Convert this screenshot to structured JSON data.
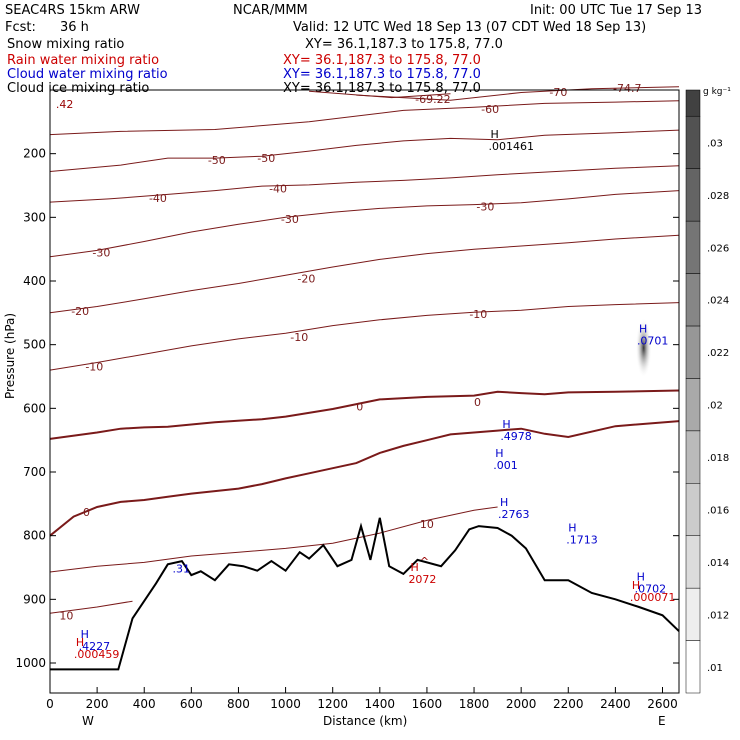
{
  "header": {
    "model": "SEAC4RS 15km ARW",
    "center": "NCAR/MMM",
    "init": "Init: 00 UTC Tue 17 Sep 13",
    "fcst_label": "Fcst:",
    "fcst_value": "36 h",
    "valid": "Valid: 12 UTC Wed 18 Sep 13 (07 CDT Wed 18 Sep 13)"
  },
  "fields": [
    {
      "name": "Snow mixing ratio",
      "xy": "XY=  36.1,187.3 to 175.8, 77.0",
      "color": "#000000"
    },
    {
      "name": "Rain water mixing ratio",
      "xy": "XY=  36.1,187.3 to 175.8, 77.0",
      "color": "#cc0000"
    },
    {
      "name": "Cloud water mixing ratio",
      "xy": "XY=  36.1,187.3 to 175.8, 77.0",
      "color": "#0000cc"
    },
    {
      "name": "Cloud ice mixing ratio",
      "xy": "XY=  36.1,187.3 to 175.8, 77.0",
      "color": "#000000"
    }
  ],
  "colorbar": {
    "unit": "g kg⁻¹",
    "ticks": [
      ".01",
      ".012",
      ".014",
      ".016",
      ".018",
      ".02",
      ".022",
      ".024",
      ".026",
      ".028",
      ".03"
    ]
  },
  "chart_data": {
    "type": "cross-section",
    "xlabel": "Distance (km)",
    "ylabel": "Pressure (hPa)",
    "xlim": [
      0,
      2670
    ],
    "ylim": [
      1035,
      100
    ],
    "x_ticks": [
      0,
      200,
      400,
      600,
      800,
      1000,
      1200,
      1400,
      1600,
      1800,
      2000,
      2200,
      2400,
      2600
    ],
    "y_ticks": [
      200,
      300,
      400,
      500,
      600,
      700,
      800,
      900,
      1000
    ],
    "end_labels": {
      "left": "W",
      "right": "E"
    },
    "temperature_contours": [
      {
        "label": "-70",
        "points": [
          [
            1300,
            108
          ],
          [
            1700,
            116
          ],
          [
            2000,
            104
          ],
          [
            2300,
            98
          ],
          [
            2670,
            95
          ]
        ],
        "labels_at": [
          [
            2120,
            103
          ],
          [
            2390,
            97
          ]
        ],
        "label_texts": [
          "-70",
          "-74.7"
        ]
      },
      {
        "label": "-69.22",
        "points": [
          [
            1100,
            102
          ],
          [
            1450,
            112
          ],
          [
            1700,
            106
          ]
        ],
        "labels_at": [
          [
            1550,
            114
          ]
        ],
        "label_texts": [
          "-69.22"
        ]
      },
      {
        "label": "-60",
        "points": [
          [
            0,
            170
          ],
          [
            300,
            165
          ],
          [
            700,
            162
          ],
          [
            1100,
            150
          ],
          [
            1500,
            132
          ],
          [
            1800,
            127
          ],
          [
            2100,
            121
          ],
          [
            2400,
            119
          ],
          [
            2670,
            117
          ]
        ],
        "labels_at": [
          [
            1830,
            130
          ]
        ],
        "label_texts": [
          "-60"
        ]
      },
      {
        "label": "-50",
        "points": [
          [
            0,
            228
          ],
          [
            300,
            218
          ],
          [
            500,
            207
          ],
          [
            700,
            207
          ],
          [
            900,
            204
          ],
          [
            1100,
            196
          ],
          [
            1300,
            187
          ],
          [
            1500,
            180
          ],
          [
            1700,
            176
          ],
          [
            1900,
            178
          ],
          [
            2100,
            171
          ],
          [
            2400,
            167
          ],
          [
            2670,
            163
          ]
        ],
        "labels_at": [
          [
            670,
            210
          ],
          [
            880,
            207
          ]
        ],
        "label_texts": [
          "-50",
          "-50"
        ]
      },
      {
        "label": "-40",
        "points": [
          [
            0,
            276
          ],
          [
            250,
            271
          ],
          [
            500,
            264
          ],
          [
            700,
            258
          ],
          [
            900,
            251
          ],
          [
            1100,
            249
          ],
          [
            1300,
            245
          ],
          [
            1500,
            242
          ],
          [
            1700,
            238
          ],
          [
            1900,
            233
          ],
          [
            2100,
            229
          ],
          [
            2400,
            223
          ],
          [
            2670,
            219
          ]
        ],
        "labels_at": [
          [
            420,
            270
          ],
          [
            930,
            255
          ]
        ],
        "label_texts": [
          "-40",
          "-40"
        ]
      },
      {
        "label": "-30",
        "points": [
          [
            0,
            362
          ],
          [
            200,
            352
          ],
          [
            400,
            338
          ],
          [
            600,
            323
          ],
          [
            800,
            311
          ],
          [
            1000,
            300
          ],
          [
            1200,
            292
          ],
          [
            1400,
            286
          ],
          [
            1600,
            282
          ],
          [
            1800,
            280
          ],
          [
            2000,
            277
          ],
          [
            2200,
            271
          ],
          [
            2400,
            264
          ],
          [
            2670,
            258
          ]
        ],
        "labels_at": [
          [
            180,
            355
          ],
          [
            980,
            303
          ],
          [
            1810,
            283
          ]
        ],
        "label_texts": [
          "-30",
          "-30",
          "-30"
        ]
      },
      {
        "label": "-20",
        "points": [
          [
            0,
            450
          ],
          [
            200,
            440
          ],
          [
            400,
            428
          ],
          [
            600,
            415
          ],
          [
            800,
            404
          ],
          [
            1000,
            391
          ],
          [
            1200,
            378
          ],
          [
            1400,
            366
          ],
          [
            1600,
            357
          ],
          [
            1800,
            350
          ],
          [
            2000,
            345
          ],
          [
            2200,
            340
          ],
          [
            2400,
            334
          ],
          [
            2670,
            328
          ]
        ],
        "labels_at": [
          [
            90,
            447
          ],
          [
            1050,
            396
          ]
        ],
        "label_texts": [
          "-20",
          "-20"
        ]
      },
      {
        "label": "-10",
        "points": [
          [
            0,
            540
          ],
          [
            200,
            528
          ],
          [
            400,
            515
          ],
          [
            600,
            502
          ],
          [
            800,
            491
          ],
          [
            1000,
            482
          ],
          [
            1200,
            470
          ],
          [
            1400,
            461
          ],
          [
            1600,
            454
          ],
          [
            1800,
            449
          ],
          [
            2000,
            446
          ],
          [
            2200,
            440
          ],
          [
            2400,
            437
          ],
          [
            2670,
            434
          ]
        ],
        "labels_at": [
          [
            150,
            534
          ],
          [
            1020,
            488
          ],
          [
            1780,
            452
          ]
        ],
        "label_texts": [
          "-10",
          "-10",
          "-10"
        ]
      },
      {
        "label": "0",
        "points": [
          [
            0,
            648
          ],
          [
            200,
            638
          ],
          [
            300,
            632
          ],
          [
            400,
            630
          ],
          [
            500,
            629
          ],
          [
            700,
            622
          ],
          [
            900,
            617
          ],
          [
            1000,
            613
          ],
          [
            1200,
            601
          ],
          [
            1400,
            586
          ],
          [
            1600,
            582
          ],
          [
            1800,
            580
          ],
          [
            1900,
            574
          ],
          [
            2000,
            576
          ],
          [
            2100,
            578
          ],
          [
            2200,
            575
          ],
          [
            2400,
            574
          ],
          [
            2670,
            572
          ]
        ],
        "labels_at": [
          [
            1300,
            597
          ],
          [
            1800,
            590
          ]
        ],
        "label_texts": [
          "0",
          "0"
        ]
      },
      {
        "label": "0",
        "points": [
          [
            0,
            800
          ],
          [
            100,
            770
          ],
          [
            200,
            755
          ],
          [
            300,
            747
          ],
          [
            400,
            744
          ],
          [
            500,
            739
          ],
          [
            600,
            734
          ],
          [
            700,
            730
          ],
          [
            800,
            726
          ],
          [
            900,
            719
          ],
          [
            1000,
            710
          ],
          [
            1100,
            702
          ],
          [
            1200,
            694
          ],
          [
            1300,
            686
          ],
          [
            1400,
            670
          ],
          [
            1500,
            659
          ],
          [
            1600,
            650
          ],
          [
            1700,
            641
          ],
          [
            1800,
            638
          ],
          [
            1900,
            635
          ],
          [
            2000,
            632
          ],
          [
            2100,
            640
          ],
          [
            2200,
            645
          ],
          [
            2400,
            628
          ],
          [
            2670,
            620
          ]
        ],
        "labels_at": [
          [
            140,
            763
          ]
        ],
        "label_texts": [
          "0"
        ]
      },
      {
        "label": "10",
        "points": [
          [
            0,
            857
          ],
          [
            200,
            848
          ],
          [
            400,
            842
          ],
          [
            600,
            832
          ],
          [
            800,
            826
          ],
          [
            1000,
            820
          ],
          [
            1200,
            812
          ],
          [
            1400,
            796
          ],
          [
            1600,
            776
          ],
          [
            1800,
            760
          ],
          [
            1900,
            755
          ]
        ],
        "labels_at": [
          [
            1570,
            782
          ]
        ],
        "label_texts": [
          "10"
        ]
      },
      {
        "label": "10",
        "points": [
          [
            0,
            922
          ],
          [
            200,
            912
          ],
          [
            350,
            903
          ]
        ],
        "labels_at": [
          [
            40,
            925
          ]
        ],
        "label_texts": [
          "10"
        ]
      }
    ],
    "terrain": [
      [
        0,
        1010
      ],
      [
        100,
        1010
      ],
      [
        200,
        1010
      ],
      [
        290,
        1010
      ],
      [
        350,
        930
      ],
      [
        450,
        875
      ],
      [
        500,
        845
      ],
      [
        560,
        840
      ],
      [
        600,
        862
      ],
      [
        640,
        856
      ],
      [
        700,
        870
      ],
      [
        760,
        845
      ],
      [
        820,
        848
      ],
      [
        880,
        855
      ],
      [
        940,
        840
      ],
      [
        1000,
        855
      ],
      [
        1060,
        826
      ],
      [
        1100,
        836
      ],
      [
        1160,
        815
      ],
      [
        1220,
        848
      ],
      [
        1280,
        838
      ],
      [
        1320,
        785
      ],
      [
        1360,
        838
      ],
      [
        1400,
        772
      ],
      [
        1440,
        848
      ],
      [
        1500,
        860
      ],
      [
        1560,
        838
      ],
      [
        1600,
        842
      ],
      [
        1660,
        848
      ],
      [
        1720,
        823
      ],
      [
        1780,
        790
      ],
      [
        1820,
        785
      ],
      [
        1900,
        788
      ],
      [
        1960,
        800
      ],
      [
        2020,
        820
      ],
      [
        2100,
        870
      ],
      [
        2200,
        870
      ],
      [
        2300,
        890
      ],
      [
        2400,
        900
      ],
      [
        2500,
        912
      ],
      [
        2600,
        925
      ],
      [
        2670,
        950
      ]
    ],
    "maxima": [
      {
        "label": "H",
        "value": ".001461",
        "x": 1870,
        "p": 185,
        "color": "#000000"
      },
      {
        "label": "H",
        "value": ".0701",
        "x": 2500,
        "p": 490,
        "color": "#0000cc"
      },
      {
        "label": "H",
        "value": ".4978",
        "x": 1920,
        "p": 640,
        "color": "#0000cc"
      },
      {
        "label": "H",
        "value": ".001",
        "x": 1890,
        "p": 686,
        "color": "#0000cc"
      },
      {
        "label": "H",
        "value": ".2763",
        "x": 1910,
        "p": 763,
        "color": "#0000cc"
      },
      {
        "label": "H",
        "value": ".1713",
        "x": 2200,
        "p": 803,
        "color": "#0000cc"
      },
      {
        "label": "H",
        "value": "2072",
        "x": 1530,
        "p": 865,
        "color": "#cc0000"
      },
      {
        "label": "H",
        "value": ".0702",
        "x": 2490,
        "p": 880,
        "color": "#0000cc"
      },
      {
        "label": "H",
        "value": ".000071",
        "x": 2470,
        "p": 893,
        "color": "#cc0000"
      },
      {
        "label": "H",
        "value": ".4227",
        "x": 130,
        "p": 970,
        "color": "#0000cc"
      },
      {
        "label": "H",
        "value": ".000459",
        "x": 110,
        "p": 983,
        "color": "#cc0000"
      }
    ],
    "extra_labels": [
      {
        "text": ".42",
        "x": 25,
        "p": 128,
        "color": "#990000"
      },
      {
        "text": ".31",
        "x": 520,
        "p": 858,
        "color": "#0000cc"
      },
      {
        "text": "^",
        "x": 1570,
        "p": 846,
        "color": "#990000"
      }
    ]
  }
}
